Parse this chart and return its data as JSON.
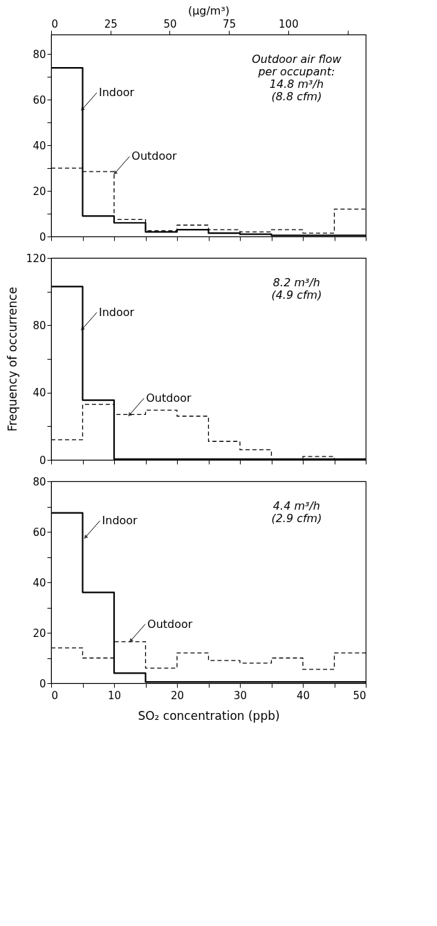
{
  "chart_data": [
    {
      "type": "histogram",
      "bins": [
        0,
        5,
        10,
        15,
        20,
        25,
        30,
        35,
        40,
        45,
        50
      ],
      "series": [
        {
          "color": "#000000",
          "line_style": "solid",
          "values": [
            74,
            9,
            6,
            2,
            3,
            1.5,
            1,
            0.5,
            0.5,
            0.5
          ]
        },
        {
          "color": "#000000",
          "line_style": "dashed",
          "values": [
            30,
            28.5,
            7.5,
            2.5,
            5,
            3,
            2,
            3,
            1.5,
            12
          ]
        }
      ],
      "xlim": [
        0,
        50
      ],
      "xticks": [
        {
          "value": 0,
          "label": null
        },
        {
          "value": 5,
          "label": null
        },
        {
          "value": 10,
          "label": null
        },
        {
          "value": 15,
          "label": null
        },
        {
          "value": 20,
          "label": null
        },
        {
          "value": 25,
          "label": null
        },
        {
          "value": 30,
          "label": null
        },
        {
          "value": 35,
          "label": null
        },
        {
          "value": 40,
          "label": null
        },
        {
          "value": 45,
          "label": null
        },
        {
          "value": 50,
          "label": null
        }
      ],
      "x2label": "(μg/m³)",
      "x2lim": [
        0,
        132.7
      ],
      "x2ticks": [
        0,
        25,
        50,
        75,
        100,
        {
          "value": 125,
          "label": null
        }
      ],
      "ylim": [
        0,
        88.6
      ],
      "yticks": [
        0,
        {
          "value": 10,
          "label": null
        },
        20,
        {
          "value": 30,
          "label": null
        },
        40,
        {
          "value": 50,
          "label": null
        },
        60,
        {
          "value": 70,
          "label": null
        },
        80
      ],
      "tick_labels": "y",
      "grid": false,
      "annotations": [
        {
          "text": "Indoor",
          "x": 5,
          "y": 56
        },
        {
          "text": "Outdoor",
          "x": 10.2,
          "y": 28
        },
        "Outdoor air flow\nper occupant:\n14.8 m³/h\n(8.8 cfm)"
      ]
    },
    {
      "type": "histogram",
      "bins": [
        0,
        5,
        10,
        15,
        20,
        25,
        30,
        35,
        40,
        45,
        50
      ],
      "series": [
        {
          "color": "#000000",
          "line_style": "solid",
          "values": [
            103,
            35.5,
            0.5,
            0.5,
            0.5,
            0.5,
            0.5,
            0.5,
            0.5,
            0.5
          ]
        },
        {
          "color": "#000000",
          "line_style": "dashed",
          "values": [
            12,
            33,
            27,
            29.5,
            26,
            11,
            6,
            0,
            2,
            0
          ]
        }
      ],
      "xlim": [
        0,
        50
      ],
      "xticks": [
        {
          "value": 0,
          "label": null
        },
        {
          "value": 5,
          "label": null
        },
        {
          "value": 10,
          "label": null
        },
        {
          "value": 15,
          "label": null
        },
        {
          "value": 20,
          "label": null
        },
        {
          "value": 25,
          "label": null
        },
        {
          "value": 30,
          "label": null
        },
        {
          "value": 35,
          "label": null
        },
        {
          "value": 40,
          "label": null
        },
        {
          "value": 45,
          "label": null
        },
        {
          "value": 50,
          "label": null
        }
      ],
      "ylabel": "Frequency of occurrence",
      "ylim": [
        0,
        120
      ],
      "yticks": [
        0,
        {
          "value": 20,
          "label": null
        },
        40,
        {
          "value": 60,
          "label": null
        },
        80,
        {
          "value": 100,
          "label": null
        },
        120
      ],
      "tick_labels": "y",
      "grid": false,
      "annotations": [
        {
          "text": "Indoor",
          "x": 5,
          "y": 78
        },
        {
          "text": "Outdoor",
          "x": 12.5,
          "y": 27
        },
        "8.2 m³/h\n(4.9 cfm)"
      ]
    },
    {
      "type": "histogram",
      "bins": [
        0,
        5,
        10,
        15,
        20,
        25,
        30,
        35,
        40,
        45,
        50
      ],
      "series": [
        {
          "color": "#000000",
          "line_style": "solid",
          "values": [
            67.5,
            36,
            4,
            0.5,
            0.5,
            0.5,
            0.5,
            0.5,
            0.5,
            0.5
          ]
        },
        {
          "color": "#000000",
          "line_style": "dashed",
          "values": [
            14,
            10,
            16.5,
            6,
            12,
            9,
            8,
            10,
            5.5,
            12
          ]
        }
      ],
      "xlim": [
        0,
        50
      ],
      "xticks": [
        0,
        {
          "value": 5,
          "label": null
        },
        10,
        {
          "value": 15,
          "label": null
        },
        20,
        {
          "value": 25,
          "label": null
        },
        30,
        {
          "value": 35,
          "label": null
        },
        40,
        {
          "value": 45,
          "label": null
        },
        50
      ],
      "xlabel": "SO₂ concentration (ppb)",
      "ylim": [
        0,
        80
      ],
      "yticks": [
        0,
        {
          "value": 10,
          "label": null
        },
        20,
        {
          "value": 30,
          "label": null
        },
        40,
        {
          "value": 50,
          "label": null
        },
        60,
        {
          "value": 70,
          "label": null
        },
        80
      ],
      "grid": false,
      "annotations": [
        {
          "text": "Indoor",
          "x": 5.5,
          "y": 58
        },
        {
          "text": "Outdoor",
          "x": 12.7,
          "y": 17
        },
        "4.4 m³/h\n(2.9 cfm)"
      ]
    }
  ]
}
